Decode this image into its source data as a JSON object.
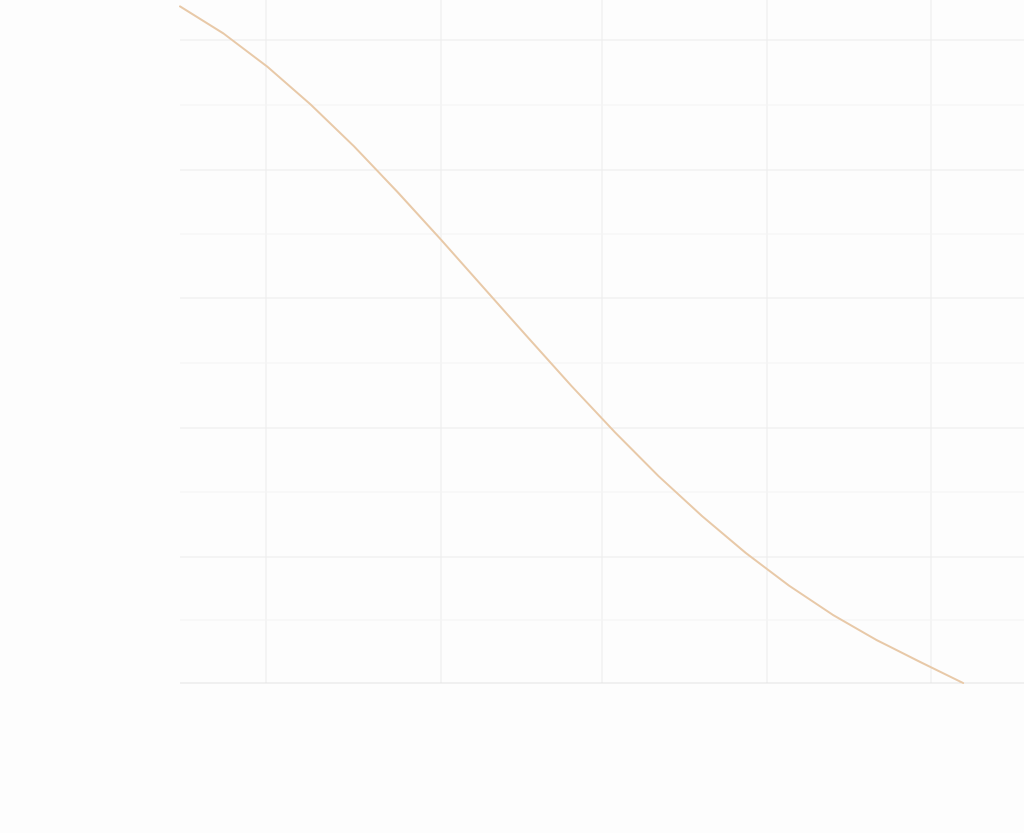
{
  "chart_data": {
    "type": "line",
    "title": "",
    "xlabel": "",
    "ylabel": "",
    "grid": true,
    "legend": "none",
    "xlim": [
      0.0,
      0.97
    ],
    "ylim": [
      0.0,
      1.06
    ],
    "series": [
      {
        "color": "#e8c9a8",
        "x": [
          0.0,
          0.05,
          0.1,
          0.15,
          0.2,
          0.25,
          0.3,
          0.35,
          0.4,
          0.45,
          0.5,
          0.55,
          0.6,
          0.65,
          0.7,
          0.75,
          0.8,
          0.85,
          0.9
        ],
        "y": [
          1.05,
          1.008,
          0.957,
          0.898,
          0.833,
          0.762,
          0.688,
          0.612,
          0.536,
          0.461,
          0.389,
          0.321,
          0.259,
          0.202,
          0.151,
          0.106,
          0.067,
          0.033,
          0.0
        ]
      }
    ]
  },
  "colors": {
    "background": "#fdfdfd",
    "grid_major": "#ececec",
    "grid_minor": "#f4f4f4",
    "axis": "#e2e2e2"
  }
}
